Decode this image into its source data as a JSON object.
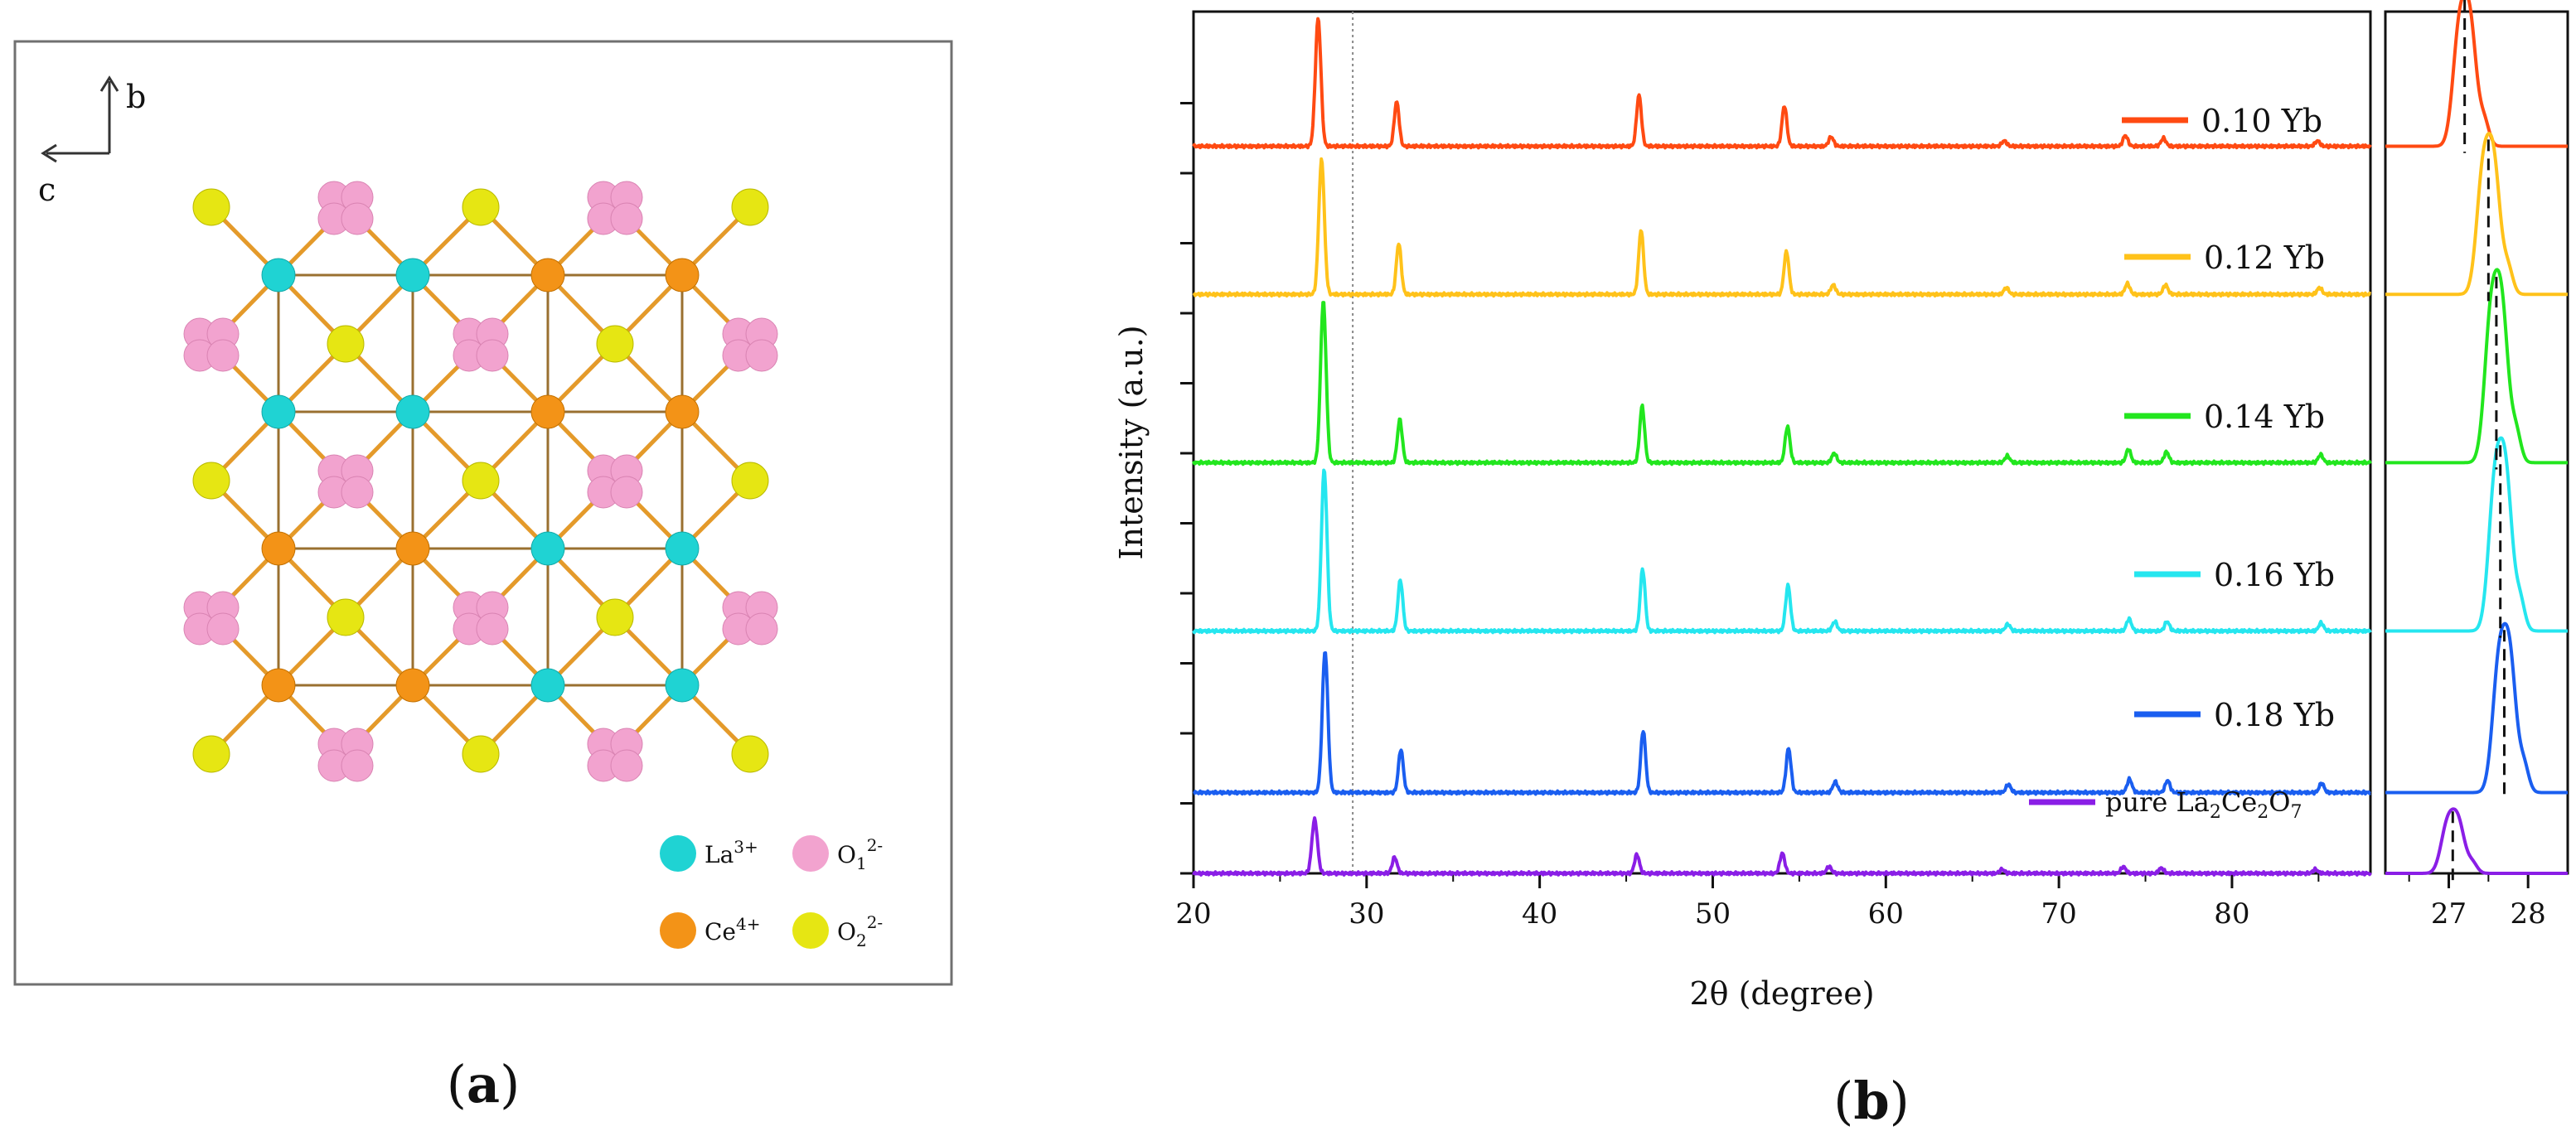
{
  "panel_a": {
    "label_open": "(",
    "label_letter": "a",
    "label_close": ")",
    "axes": {
      "vertical": "b",
      "horizontal": "c"
    },
    "legend": [
      {
        "base": "La",
        "sup": "3+",
        "sub": "",
        "color": "#1fd3d3"
      },
      {
        "base": "O",
        "sub": "1",
        "sup": "2-",
        "color": "#f2a3cf"
      },
      {
        "base": "Ce",
        "sup": "4+",
        "sub": "",
        "color": "#f39317"
      },
      {
        "base": "O",
        "sub": "2",
        "sup": "2-",
        "color": "#e6e613"
      }
    ],
    "colors": {
      "bond": "#e49a2a",
      "bond_dark": "#9a7030"
    }
  },
  "panel_b": {
    "label_open": "(",
    "label_letter": "b",
    "label_close": ")"
  },
  "chart_data": {
    "type": "line",
    "title": "",
    "xlabel": "2θ (degree)",
    "ylabel": "Intensity (a.u.)",
    "xlim": [
      20,
      88
    ],
    "ylim": [
      0,
      6.4
    ],
    "xticks": [
      "20",
      "30",
      "40",
      "50",
      "60",
      "70",
      "80"
    ],
    "inset": {
      "xlim": [
        26.2,
        28.5
      ],
      "xticks": [
        "27",
        "28"
      ]
    },
    "reference_line_x": 29.2,
    "peak_positions": [
      27.3,
      31.8,
      45.8,
      54.2,
      56.9,
      66.9,
      73.9,
      76.1,
      85.0
    ],
    "series": [
      {
        "name": "0.10 Yb",
        "color": "#ff4a12",
        "offset": 5.4,
        "shift": -0.1,
        "inset_peak": 27.2,
        "peak_heights": [
          0.95,
          0.33,
          0.38,
          0.3,
          0.07,
          0.04,
          0.08,
          0.06,
          0.04
        ]
      },
      {
        "name": "0.12 Yb",
        "color": "#ffc21a",
        "offset": 4.3,
        "shift": 0.1,
        "inset_peak": 27.5,
        "peak_heights": [
          1.0,
          0.38,
          0.48,
          0.32,
          0.07,
          0.05,
          0.08,
          0.07,
          0.05
        ]
      },
      {
        "name": "0.14 Yb",
        "color": "#22e61e",
        "offset": 3.05,
        "shift": 0.2,
        "inset_peak": 27.6,
        "peak_heights": [
          1.2,
          0.32,
          0.42,
          0.27,
          0.07,
          0.05,
          0.1,
          0.08,
          0.06
        ]
      },
      {
        "name": "0.16 Yb",
        "color": "#25e6ef",
        "offset": 1.8,
        "shift": 0.25,
        "inset_peak": 27.65,
        "peak_heights": [
          1.2,
          0.38,
          0.46,
          0.34,
          0.07,
          0.05,
          0.09,
          0.07,
          0.06
        ]
      },
      {
        "name": "0.18 Yb",
        "color": "#1a5ef0",
        "offset": 0.6,
        "shift": 0.3,
        "inset_peak": 27.7,
        "peak_heights": [
          1.05,
          0.32,
          0.46,
          0.33,
          0.08,
          0.06,
          0.1,
          0.09,
          0.07
        ]
      },
      {
        "name": "pure La2Ce2O7",
        "color": "#8a1ee6",
        "offset": 0.0,
        "shift": -0.3,
        "inset_peak": 27.05,
        "peak_heights": [
          0.4,
          0.12,
          0.14,
          0.15,
          0.05,
          0.03,
          0.05,
          0.04,
          0.03
        ]
      }
    ],
    "legend": [
      {
        "label": "0.10 Yb",
        "color": "#ff4a12"
      },
      {
        "label": "0.12 Yb",
        "color": "#ffc21a"
      },
      {
        "label": "0.14 Yb",
        "color": "#22e61e"
      },
      {
        "label": "0.16 Yb",
        "color": "#25e6ef"
      },
      {
        "label": "0.18 Yb",
        "color": "#1a5ef0"
      },
      {
        "label_prefix": "pure La",
        "sub1": "2",
        "mid1": "Ce",
        "sub2": "2",
        "mid2": "O",
        "sub3": "7",
        "color": "#8a1ee6"
      }
    ]
  }
}
